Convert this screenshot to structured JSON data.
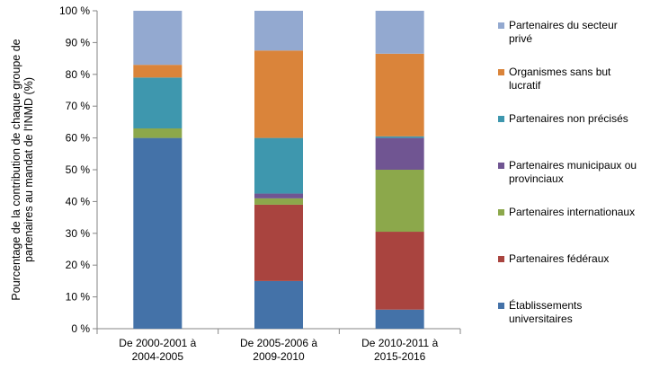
{
  "chart_data": {
    "type": "bar",
    "stacked": true,
    "percent": true,
    "categories": [
      [
        "De 2000-2001 à",
        "2004-2005"
      ],
      [
        "De 2005-2006 à",
        "2009-2010"
      ],
      [
        "De 2010-2011 à",
        "2015-2016"
      ]
    ],
    "ylabel": [
      "Pourcentage de la contribution de chaque groupe de",
      "partenaires au mandat de l'INMD (%)"
    ],
    "ylim": [
      0,
      100
    ],
    "yticks": [
      0,
      10,
      20,
      30,
      40,
      50,
      60,
      70,
      80,
      90,
      100
    ],
    "ytick_labels": [
      "0 %",
      "10 %",
      "20 %",
      "30 %",
      "40 %",
      "50 %",
      "60 %",
      "70 %",
      "80 %",
      "90 %",
      "100 %"
    ],
    "grid": false,
    "legend_position": "right",
    "series": [
      {
        "name": [
          "Établissements",
          "universitaires"
        ],
        "color": "#4472A8",
        "values": [
          60,
          15,
          6
        ]
      },
      {
        "name": [
          "Partenaires fédéraux"
        ],
        "color": "#A9443F",
        "values": [
          0,
          24,
          24.5
        ]
      },
      {
        "name": [
          "Partenaires internationaux"
        ],
        "color": "#8CA84B",
        "values": [
          3,
          2,
          19.5
        ]
      },
      {
        "name": [
          "Partenaires municipaux ou",
          "provinciaux"
        ],
        "color": "#705592",
        "values": [
          0,
          1.5,
          10
        ]
      },
      {
        "name": [
          "Partenaires non précisés"
        ],
        "color": "#3E97AE",
        "values": [
          16,
          17.5,
          0.5
        ]
      },
      {
        "name": [
          "Organismes sans but",
          "lucratif"
        ],
        "color": "#DA843A",
        "values": [
          4,
          27.5,
          26
        ]
      },
      {
        "name": [
          "Partenaires du secteur",
          "privé"
        ],
        "color": "#93A9D0",
        "values": [
          17,
          12.5,
          13.5
        ]
      }
    ]
  }
}
